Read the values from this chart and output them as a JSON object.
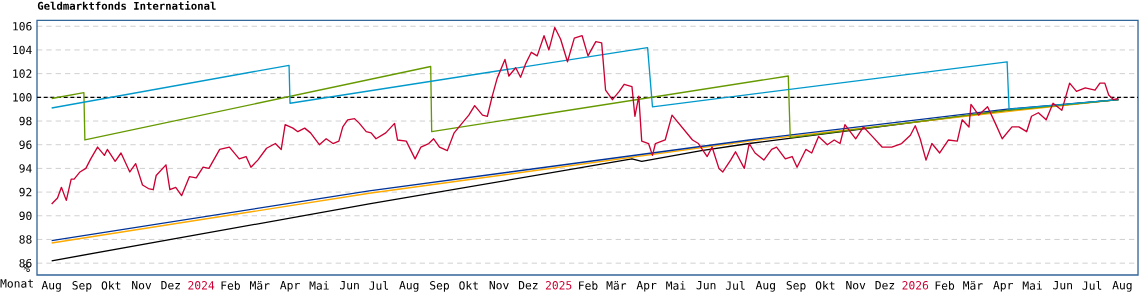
{
  "chart_data": {
    "type": "line",
    "title": "Geldmarktfonds International",
    "xlabel": "Monat",
    "ylabel": "%",
    "xlim": [
      "2023-08-01",
      "2026-09-01"
    ],
    "ylim": [
      85,
      106.5
    ],
    "yticks": [
      86,
      88,
      90,
      92,
      94,
      96,
      98,
      100,
      102,
      104,
      106
    ],
    "xticks": [
      {
        "value": "2023-08-16",
        "label": "Aug"
      },
      {
        "value": "2023-09-16",
        "label": "Sep"
      },
      {
        "value": "2023-10-16",
        "label": "Okt"
      },
      {
        "value": "2023-11-16",
        "label": "Nov"
      },
      {
        "value": "2023-12-16",
        "label": "Dez"
      },
      {
        "value": "2024-01-16",
        "label": "2024"
      },
      {
        "value": "2024-02-15",
        "label": "Feb"
      },
      {
        "value": "2024-03-16",
        "label": "Mär"
      },
      {
        "value": "2024-04-16",
        "label": "Apr"
      },
      {
        "value": "2024-05-16",
        "label": "Mai"
      },
      {
        "value": "2024-06-16",
        "label": "Jun"
      },
      {
        "value": "2024-07-16",
        "label": "Jul"
      },
      {
        "value": "2024-08-16",
        "label": "Aug"
      },
      {
        "value": "2024-09-16",
        "label": "Sep"
      },
      {
        "value": "2024-10-16",
        "label": "Okt"
      },
      {
        "value": "2024-11-16",
        "label": "Nov"
      },
      {
        "value": "2024-12-16",
        "label": "Dez"
      },
      {
        "value": "2025-01-16",
        "label": "2025"
      },
      {
        "value": "2025-02-15",
        "label": "Feb"
      },
      {
        "value": "2025-03-16",
        "label": "Mär"
      },
      {
        "value": "2025-04-16",
        "label": "Apr"
      },
      {
        "value": "2025-05-16",
        "label": "Mai"
      },
      {
        "value": "2025-06-16",
        "label": "Jun"
      },
      {
        "value": "2025-07-16",
        "label": "Jul"
      },
      {
        "value": "2025-08-16",
        "label": "Aug"
      },
      {
        "value": "2025-09-16",
        "label": "Sep"
      },
      {
        "value": "2025-10-16",
        "label": "Okt"
      },
      {
        "value": "2025-11-16",
        "label": "Nov"
      },
      {
        "value": "2025-12-16",
        "label": "Dez"
      },
      {
        "value": "2026-01-16",
        "label": "2026"
      },
      {
        "value": "2026-02-15",
        "label": "Feb"
      },
      {
        "value": "2026-03-16",
        "label": "Mär"
      },
      {
        "value": "2026-04-16",
        "label": "Apr"
      },
      {
        "value": "2026-05-16",
        "label": "Mai"
      },
      {
        "value": "2026-06-16",
        "label": "Jun"
      },
      {
        "value": "2026-07-16",
        "label": "Jul"
      },
      {
        "value": "2026-08-16",
        "label": "Aug"
      }
    ],
    "grid": "y",
    "line_style": "solid",
    "ref_lines": [
      {
        "axis": "y",
        "value": 100,
        "color": "#000000",
        "line_style": "dashed"
      }
    ],
    "series": [
      {
        "color": "#000000",
        "x": [
          "2023-08-16",
          "2024-07-06",
          "2025-04-01",
          "2025-04-11",
          "2025-06-11",
          "2025-07-30",
          "2026-04-20",
          "2026-08-12"
        ],
        "values": [
          86.2,
          91.0,
          94.8,
          94.6,
          95.5,
          96.1,
          98.9,
          99.8
        ]
      },
      {
        "color": "#ffaa00",
        "x": [
          "2023-08-16",
          "2024-07-06",
          "2025-07-30",
          "2026-04-20",
          "2026-08-12"
        ],
        "values": [
          87.7,
          91.9,
          96.3,
          98.8,
          99.8
        ]
      },
      {
        "color": "#003399",
        "x": [
          "2023-08-16",
          "2024-07-06",
          "2025-07-30",
          "2026-04-20",
          "2026-08-12"
        ],
        "values": [
          87.9,
          92.1,
          96.4,
          99.0,
          99.8
        ]
      },
      {
        "color": "#669900",
        "x": [
          "2023-08-16",
          "2023-09-18",
          "2023-09-19",
          "2024-09-07",
          "2024-09-08",
          "2025-09-08",
          "2025-09-10",
          "2026-04-20",
          "2026-08-12"
        ],
        "values": [
          99.9,
          100.4,
          96.4,
          102.6,
          97.1,
          101.8,
          96.6,
          98.9,
          99.8
        ]
      },
      {
        "color": "#0099cc",
        "x": [
          "2023-08-16",
          "2024-04-15",
          "2024-04-16",
          "2025-04-17",
          "2025-04-22",
          "2026-04-20",
          "2026-04-22",
          "2026-08-12"
        ],
        "values": [
          99.1,
          102.7,
          99.5,
          104.2,
          99.2,
          103.0,
          99.0,
          99.8
        ]
      },
      {
        "color": "#cc0033",
        "x": [
          "2023-08-16",
          "2023-08-22",
          "2023-08-26",
          "2023-08-31",
          "2023-09-05",
          "2023-09-08",
          "2023-09-14",
          "2023-09-20",
          "2023-09-25",
          "2023-10-02",
          "2023-10-09",
          "2023-10-12",
          "2023-10-20",
          "2023-10-26",
          "2023-11-04",
          "2023-11-10",
          "2023-11-17",
          "2023-11-23",
          "2023-11-28",
          "2023-12-01",
          "2023-12-11",
          "2023-12-15",
          "2023-12-21",
          "2023-12-27",
          "2024-01-04",
          "2024-01-11",
          "2024-01-18",
          "2024-01-24",
          "2024-02-04",
          "2024-02-14",
          "2024-02-24",
          "2024-03-02",
          "2024-03-07",
          "2024-03-14",
          "2024-03-23",
          "2024-04-01",
          "2024-04-07",
          "2024-04-11",
          "2024-04-19",
          "2024-04-24",
          "2024-05-01",
          "2024-05-07",
          "2024-05-16",
          "2024-05-23",
          "2024-05-30",
          "2024-06-05",
          "2024-06-09",
          "2024-06-14",
          "2024-06-21",
          "2024-06-26",
          "2024-07-03",
          "2024-07-08",
          "2024-07-13",
          "2024-07-23",
          "2024-08-01",
          "2024-08-04",
          "2024-08-13",
          "2024-08-22",
          "2024-08-28",
          "2024-09-05",
          "2024-09-10",
          "2024-09-16",
          "2024-09-24",
          "2024-10-01",
          "2024-10-09",
          "2024-10-16",
          "2024-10-22",
          "2024-10-30",
          "2024-11-04",
          "2024-11-09",
          "2024-11-14",
          "2024-11-22",
          "2024-11-26",
          "2024-12-03",
          "2024-12-08",
          "2024-12-13",
          "2024-12-19",
          "2024-12-25",
          "2025-01-01",
          "2025-01-06",
          "2025-01-12",
          "2025-01-18",
          "2025-01-25",
          "2025-02-01",
          "2025-02-09",
          "2025-02-15",
          "2025-02-23",
          "2025-03-01",
          "2025-03-05",
          "2025-03-12",
          "2025-03-19",
          "2025-03-24",
          "2025-04-01",
          "2025-04-04",
          "2025-04-08",
          "2025-04-11",
          "2025-04-18",
          "2025-04-22",
          "2025-04-25",
          "2025-05-05",
          "2025-05-12",
          "2025-05-19",
          "2025-05-26",
          "2025-06-02",
          "2025-06-08",
          "2025-06-17",
          "2025-06-22",
          "2025-06-29",
          "2025-07-03",
          "2025-07-11",
          "2025-07-16",
          "2025-07-25",
          "2025-07-30",
          "2025-08-05",
          "2025-08-14",
          "2025-08-22",
          "2025-08-27",
          "2025-09-05",
          "2025-09-12",
          "2025-09-17",
          "2025-09-26",
          "2025-10-02",
          "2025-10-09",
          "2025-10-18",
          "2025-10-25",
          "2025-10-31",
          "2025-11-05",
          "2025-11-16",
          "2025-11-24",
          "2025-12-03",
          "2025-12-13",
          "2025-12-23",
          "2026-01-02",
          "2026-01-11",
          "2026-01-16",
          "2026-01-21",
          "2026-01-27",
          "2026-02-02",
          "2026-02-10",
          "2026-02-19",
          "2026-02-28",
          "2026-03-05",
          "2026-03-12",
          "2026-03-14",
          "2026-03-22",
          "2026-03-31",
          "2026-04-08",
          "2026-04-15",
          "2026-04-25",
          "2026-05-02",
          "2026-05-10",
          "2026-05-15",
          "2026-05-22",
          "2026-05-30",
          "2026-06-06",
          "2026-06-15",
          "2026-06-23",
          "2026-06-30",
          "2026-07-09",
          "2026-07-19",
          "2026-07-24",
          "2026-07-29",
          "2026-08-02",
          "2026-08-07",
          "2026-08-12"
        ],
        "values": [
          91.0,
          91.5,
          92.4,
          91.3,
          93.1,
          93.1,
          93.7,
          94.0,
          94.8,
          95.8,
          95.1,
          95.6,
          94.6,
          95.3,
          93.7,
          94.4,
          92.6,
          92.3,
          92.2,
          93.4,
          94.3,
          92.2,
          92.4,
          91.7,
          93.3,
          93.2,
          94.1,
          94.0,
          95.6,
          95.8,
          94.8,
          95.0,
          94.1,
          94.7,
          95.7,
          96.1,
          95.6,
          97.7,
          97.4,
          97.1,
          97.4,
          97.0,
          96.0,
          96.5,
          96.1,
          96.3,
          97.5,
          98.1,
          98.2,
          97.8,
          97.1,
          97.0,
          96.5,
          97.0,
          97.8,
          96.4,
          96.3,
          94.8,
          95.8,
          96.1,
          96.5,
          95.8,
          95.5,
          97.0,
          97.8,
          98.5,
          99.3,
          98.5,
          98.4,
          100.1,
          101.6,
          103.2,
          101.8,
          102.5,
          101.7,
          102.8,
          103.8,
          103.5,
          105.2,
          104.0,
          105.9,
          104.9,
          103.0,
          105.0,
          105.2,
          103.5,
          104.7,
          104.6,
          100.6,
          99.8,
          100.5,
          101.1,
          100.9,
          98.4,
          100.1,
          96.3,
          96.1,
          95.1,
          96.1,
          96.4,
          98.5,
          97.8,
          97.1,
          96.4,
          96.1,
          95.0,
          95.8,
          94.0,
          93.7,
          94.7,
          95.4,
          94.0,
          96.1,
          95.3,
          94.7,
          95.6,
          95.8,
          94.8,
          95.0,
          94.1,
          95.6,
          95.3,
          96.7,
          96.0,
          96.4,
          96.1,
          97.7,
          96.5,
          97.5,
          96.7,
          95.8,
          95.8,
          96.1,
          96.8,
          97.6,
          96.5,
          94.7,
          96.1,
          95.3,
          96.4,
          96.3,
          98.1,
          97.5,
          99.4,
          98.5,
          99.2,
          97.8,
          96.5,
          97.5,
          97.5,
          97.1,
          98.4,
          98.7,
          98.1,
          99.5,
          98.9,
          101.2,
          100.5,
          100.8,
          100.6,
          101.2,
          101.2,
          100.2,
          99.8,
          99.9
        ]
      }
    ]
  }
}
